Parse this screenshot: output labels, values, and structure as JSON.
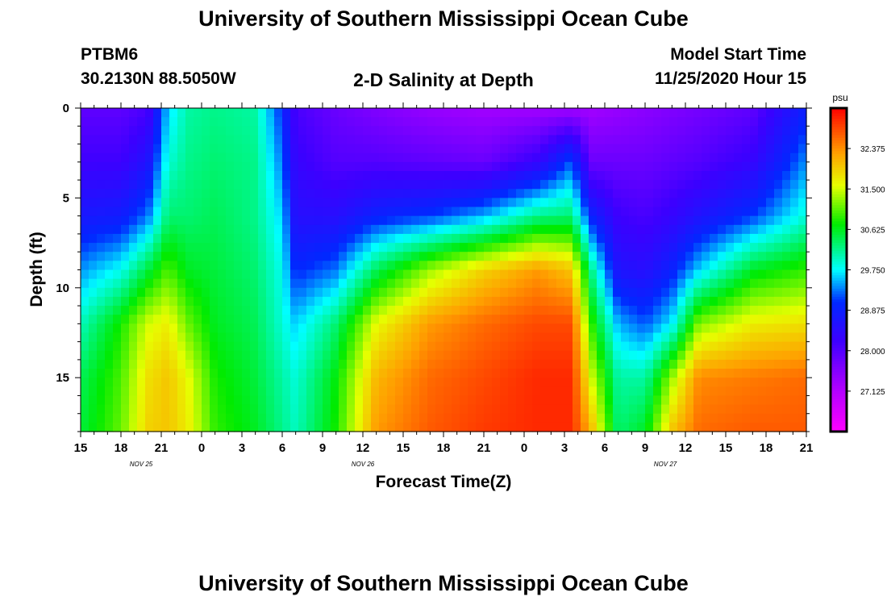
{
  "title": "University of Southern Mississippi Ocean Cube",
  "footer_title": "University of Southern Mississippi Ocean Cube",
  "station": {
    "id": "PTBM6",
    "coords": "30.2130N 88.5050W"
  },
  "plot_title": "2-D Salinity at Depth",
  "model_start": {
    "label": "Model Start Time",
    "value": "11/25/2020 Hour 15"
  },
  "chart_data": {
    "type": "heatmap",
    "title": "2-D Salinity at Depth",
    "xlabel": "Forecast Time(Z)",
    "ylabel": "Depth (ft)",
    "x_range_hours": [
      0,
      54
    ],
    "x_ticks": [
      {
        "hour": 0,
        "label": "15"
      },
      {
        "hour": 3,
        "label": "18"
      },
      {
        "hour": 6,
        "label": "21"
      },
      {
        "hour": 9,
        "label": "0"
      },
      {
        "hour": 12,
        "label": "3"
      },
      {
        "hour": 15,
        "label": "6"
      },
      {
        "hour": 18,
        "label": "9"
      },
      {
        "hour": 21,
        "label": "12"
      },
      {
        "hour": 24,
        "label": "15"
      },
      {
        "hour": 27,
        "label": "18"
      },
      {
        "hour": 30,
        "label": "21"
      },
      {
        "hour": 33,
        "label": "0"
      },
      {
        "hour": 36,
        "label": "3"
      },
      {
        "hour": 39,
        "label": "6"
      },
      {
        "hour": 42,
        "label": "9"
      },
      {
        "hour": 45,
        "label": "12"
      },
      {
        "hour": 48,
        "label": "15"
      },
      {
        "hour": 51,
        "label": "18"
      },
      {
        "hour": 54,
        "label": "21"
      }
    ],
    "date_labels": [
      {
        "hour": 4.5,
        "label": "NOV  25"
      },
      {
        "hour": 21,
        "label": "NOV  26"
      },
      {
        "hour": 43.5,
        "label": "NOV  27"
      }
    ],
    "ylim": [
      0,
      18
    ],
    "y_ticks": [
      0,
      5,
      10,
      15
    ],
    "units": "psu",
    "colorbar": {
      "min": 26.25,
      "max": 33.25,
      "ticks": [
        "32.375",
        "31.500",
        "30.625",
        "29.750",
        "28.875",
        "28.000",
        "27.125"
      ],
      "tick_values": [
        32.375,
        31.5,
        30.625,
        29.75,
        28.875,
        28.0,
        27.125
      ]
    },
    "depth_levels_ft": [
      0,
      3,
      6,
      9,
      12,
      15,
      18
    ],
    "series": [
      {
        "hour": 0,
        "values": [
          27.9,
          28.2,
          28.7,
          29.4,
          30.0,
          30.4,
          30.5
        ]
      },
      {
        "hour": 3,
        "values": [
          27.9,
          28.2,
          28.8,
          29.8,
          30.8,
          31.0,
          31.1
        ]
      },
      {
        "hour": 5,
        "values": [
          28.1,
          28.6,
          29.3,
          30.5,
          31.5,
          31.8,
          31.9
        ]
      },
      {
        "hour": 6.5,
        "values": [
          29.6,
          29.9,
          30.3,
          31.0,
          31.7,
          32.0,
          32.0
        ]
      },
      {
        "hour": 8,
        "values": [
          30.1,
          30.2,
          30.3,
          30.6,
          31.1,
          31.6,
          31.7
        ]
      },
      {
        "hour": 10,
        "values": [
          30.2,
          30.3,
          30.4,
          30.5,
          30.6,
          30.8,
          30.9
        ]
      },
      {
        "hour": 13,
        "values": [
          30.1,
          30.2,
          30.2,
          30.3,
          30.4,
          30.5,
          30.6
        ]
      },
      {
        "hour": 15,
        "values": [
          29.0,
          29.3,
          29.6,
          29.8,
          29.9,
          30.1,
          30.2
        ]
      },
      {
        "hour": 16,
        "values": [
          28.1,
          28.3,
          28.5,
          29.0,
          29.6,
          29.9,
          30.0
        ]
      },
      {
        "hour": 19,
        "values": [
          27.8,
          28.0,
          28.5,
          29.3,
          30.3,
          30.7,
          30.8
        ]
      },
      {
        "hour": 22,
        "values": [
          27.6,
          28.0,
          28.9,
          30.4,
          31.6,
          32.1,
          32.3
        ]
      },
      {
        "hour": 26,
        "values": [
          27.4,
          27.9,
          29.1,
          31.3,
          32.3,
          32.6,
          32.7
        ]
      },
      {
        "hour": 30,
        "values": [
          27.3,
          27.8,
          29.5,
          31.9,
          32.6,
          32.8,
          32.9
        ]
      },
      {
        "hour": 34,
        "values": [
          27.3,
          28.3,
          30.2,
          32.3,
          32.8,
          33.0,
          33.0
        ]
      },
      {
        "hour": 36.5,
        "values": [
          27.3,
          29.2,
          30.3,
          32.0,
          32.8,
          33.0,
          33.0
        ]
      },
      {
        "hour": 38,
        "values": [
          27.3,
          27.8,
          28.9,
          30.2,
          30.9,
          31.5,
          32.1
        ]
      },
      {
        "hour": 40,
        "values": [
          27.4,
          27.8,
          28.2,
          28.6,
          29.5,
          30.1,
          30.3
        ]
      },
      {
        "hour": 42,
        "values": [
          27.5,
          27.8,
          28.1,
          28.5,
          29.2,
          30.1,
          30.6
        ]
      },
      {
        "hour": 44,
        "values": [
          27.6,
          27.9,
          28.3,
          28.9,
          29.7,
          31.3,
          32.0
        ]
      },
      {
        "hour": 46,
        "values": [
          27.7,
          28.0,
          28.6,
          29.6,
          31.2,
          32.4,
          32.6
        ]
      },
      {
        "hour": 50,
        "values": [
          27.9,
          28.3,
          29.1,
          30.6,
          31.7,
          32.5,
          32.7
        ]
      },
      {
        "hour": 54,
        "values": [
          28.9,
          29.4,
          29.9,
          30.9,
          31.8,
          32.6,
          32.7
        ]
      }
    ]
  }
}
